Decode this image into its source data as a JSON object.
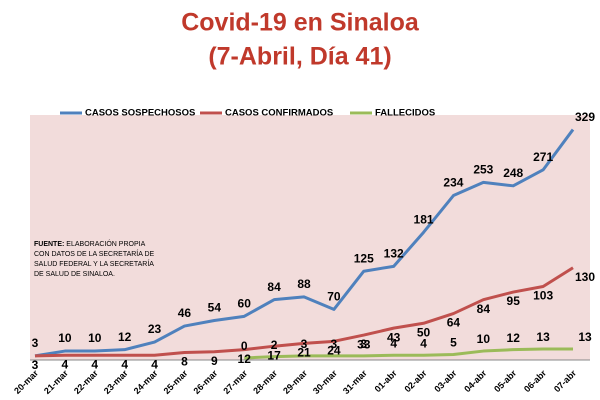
{
  "chart_data": {
    "type": "line",
    "title": "Covid-19 en Sinaloa",
    "subtitle": "(7-Abril, Día 41)",
    "categories": [
      "20-mar",
      "21-mar",
      "22-mar",
      "23-mar",
      "24-mar",
      "25-mar",
      "26-mar",
      "27-mar",
      "28-mar",
      "29-mar",
      "30-mar",
      "31-mar",
      "01-abr",
      "02-abr",
      "03-abr",
      "04-abr",
      "05-abr",
      "06-abr",
      "07-abr"
    ],
    "series": [
      {
        "name": "CASOS SOSPECHOSOS",
        "color": "#4f81bd",
        "values": [
          3,
          10,
          10,
          12,
          23,
          46,
          54,
          60,
          84,
          88,
          70,
          125,
          132,
          181,
          234,
          253,
          248,
          271,
          329
        ]
      },
      {
        "name": "CASOS CONFIRMADOS",
        "color": "#c0504d",
        "values": [
          3,
          4,
          4,
          4,
          4,
          8,
          9,
          12,
          17,
          21,
          24,
          33,
          43,
          50,
          64,
          84,
          95,
          103,
          130
        ]
      },
      {
        "name": "FALLECIDOS",
        "color": "#9bbb59",
        "values": [
          null,
          null,
          null,
          null,
          null,
          null,
          null,
          0,
          2,
          3,
          3,
          3,
          4,
          4,
          5,
          10,
          12,
          13,
          13
        ]
      }
    ],
    "ylim": [
      0,
      350
    ],
    "annotation": {
      "label": "FUENTE:",
      "lines": [
        "ELABORACIÓN PROPIA",
        "CON DATOS DE LA SECRETARÍA DE",
        "SALUD FEDERAL Y LA SECRETARÍA",
        "DE SALUD DE SINALOA."
      ]
    }
  }
}
